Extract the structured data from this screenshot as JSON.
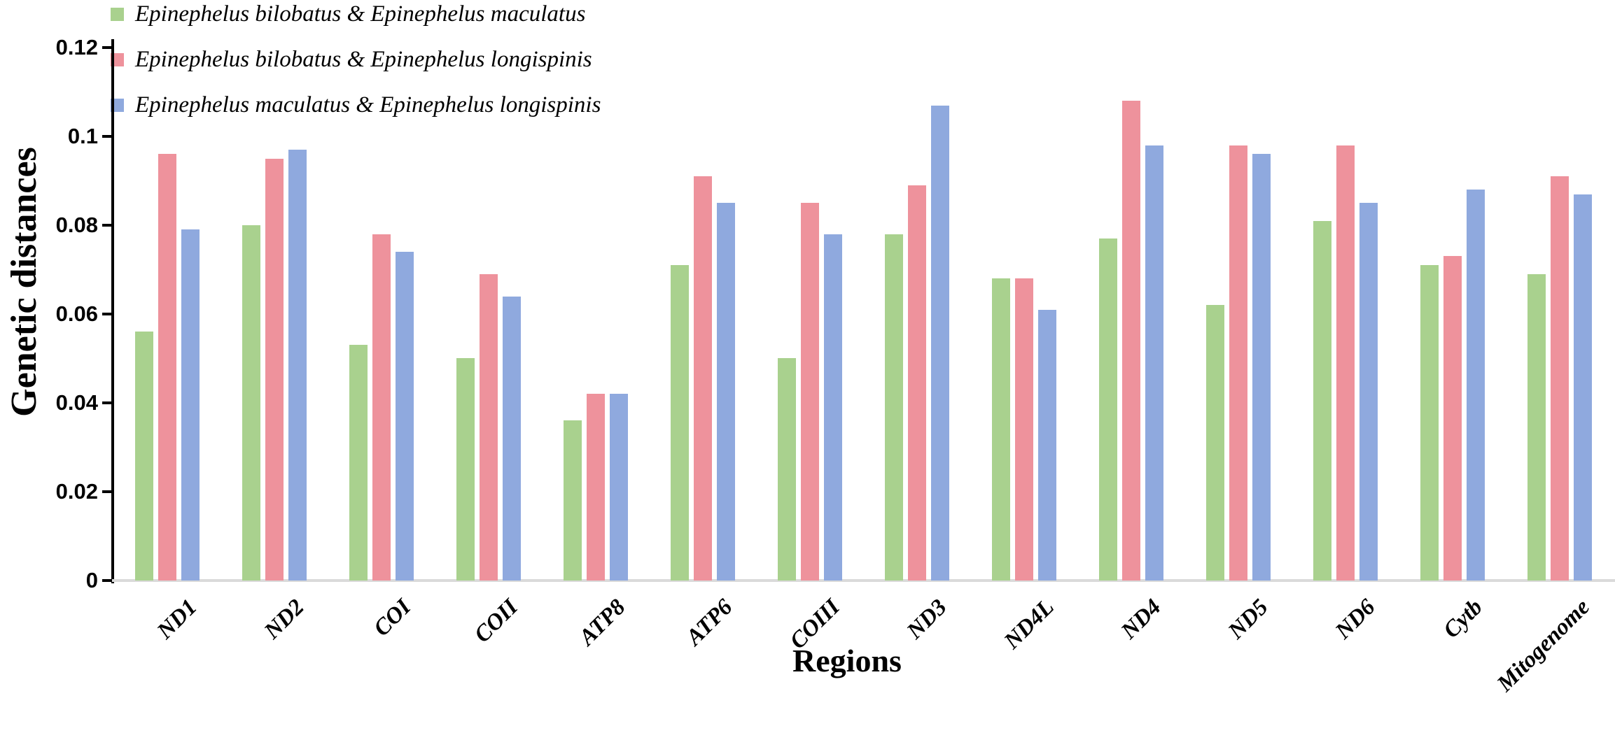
{
  "figure": {
    "background": "#ffffff"
  },
  "chart_data": {
    "type": "bar",
    "title": "",
    "xlabel": "Regions",
    "ylabel": "Genetic distances",
    "categories": [
      "ND1",
      "ND2",
      "COI",
      "COII",
      "ATP8",
      "ATP6",
      "COIII",
      "ND3",
      "ND4L",
      "ND4",
      "ND5",
      "ND6",
      "Cytb",
      "Mitogenome"
    ],
    "series": [
      {
        "name": "Epinephelus bilobatus  & Epinephelus maculatus",
        "color": "#A9D18E",
        "values": [
          0.056,
          0.08,
          0.053,
          0.05,
          0.036,
          0.071,
          0.05,
          0.078,
          0.068,
          0.077,
          0.062,
          0.081,
          0.071,
          0.069
        ]
      },
      {
        "name": "Epinephelus bilobatus  & Epinephelus longispinis",
        "color": "#EE929C",
        "values": [
          0.096,
          0.095,
          0.078,
          0.069,
          0.042,
          0.091,
          0.085,
          0.089,
          0.068,
          0.108,
          0.098,
          0.098,
          0.073,
          0.091
        ]
      },
      {
        "name": "Epinephelus maculatus  & Epinephelus longispinis",
        "color": "#8FA9DE",
        "values": [
          0.079,
          0.097,
          0.074,
          0.064,
          0.042,
          0.085,
          0.078,
          0.107,
          0.061,
          0.098,
          0.096,
          0.085,
          0.088,
          0.087
        ]
      }
    ],
    "ylim": [
      0,
      0.12
    ],
    "y_ticks": [
      {
        "value": 0,
        "label": "0"
      },
      {
        "value": 0.02,
        "label": "0.02"
      },
      {
        "value": 0.04,
        "label": "0.04"
      },
      {
        "value": 0.06,
        "label": "0.06"
      },
      {
        "value": 0.08,
        "label": "0.08"
      },
      {
        "value": 0.1,
        "label": "0.1"
      },
      {
        "value": 0.12,
        "label": "0.12"
      }
    ],
    "grid": false,
    "legend_position": "top-left",
    "axis_colors": {
      "y_axis": "#000000",
      "x_axis": "#DADADA",
      "tick_label": "#000000"
    }
  }
}
